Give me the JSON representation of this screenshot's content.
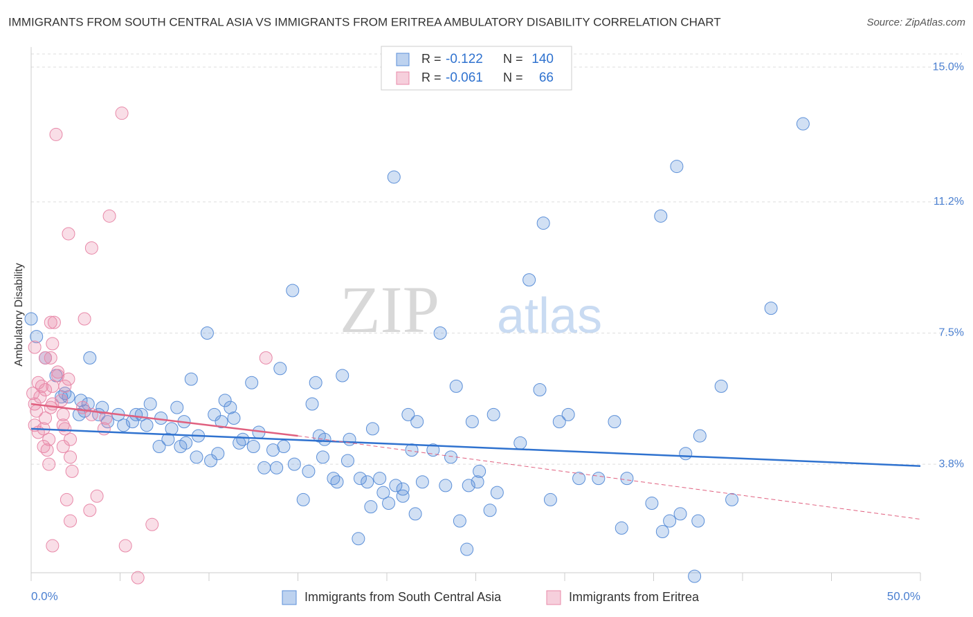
{
  "chart_data": {
    "type": "scatter",
    "title": "IMMIGRANTS FROM SOUTH CENTRAL ASIA VS IMMIGRANTS FROM ERITREA AMBULATORY DISABILITY CORRELATION CHART",
    "source": "Source: ZipAtlas.com",
    "y_label": "Ambulatory Disability",
    "watermark": [
      "ZIP",
      "atlas"
    ],
    "legend_stat_labels": {
      "r": "R =",
      "n": "N ="
    },
    "xlim": [
      0,
      50
    ],
    "ylim": [
      0.74,
      15.43
    ],
    "xticks": [
      {
        "value": 0,
        "label": "0.0%"
      },
      {
        "value": 50,
        "label": "50.0%"
      }
    ],
    "xminor_ticks": [
      5,
      10,
      15,
      20,
      25,
      30,
      35,
      40,
      45
    ],
    "yticks": [
      {
        "value": 3.8,
        "label": "3.8%"
      },
      {
        "value": 7.5,
        "label": "7.5%"
      },
      {
        "value": 11.2,
        "label": "11.2%"
      },
      {
        "value": 15.0,
        "label": "15.0%"
      }
    ],
    "grid": true,
    "series": [
      {
        "name": "Immigrants from South Central Asia",
        "color": "#5b8fd8",
        "line_color": "#2f72cf",
        "r": -0.122,
        "n": 140,
        "x": [
          43.4,
          36.3,
          20.4,
          35.4,
          28.8,
          28.0,
          14.7,
          41.6,
          9.9,
          23.0,
          3.3,
          14.0,
          17.5,
          9.0,
          16.0,
          12.4,
          23.9,
          38.8,
          28.6,
          10.9,
          15.8,
          6.7,
          11.2,
          8.2,
          3.2,
          4.0,
          30.2,
          26.0,
          21.2,
          10.3,
          2.7,
          4.9,
          5.9,
          6.2,
          21.7,
          24.8,
          29.7,
          32.8,
          7.3,
          8.6,
          11.4,
          4.3,
          5.2,
          5.7,
          6.5,
          7.9,
          10.7,
          19.2,
          37.6,
          16.2,
          16.5,
          17.9,
          12.8,
          11.9,
          9.4,
          7.7,
          8.7,
          7.2,
          8.4,
          11.7,
          12.5,
          13.6,
          14.2,
          21.4,
          22.6,
          23.6,
          27.5,
          36.8,
          9.3,
          10.5,
          10.1,
          14.8,
          16.4,
          17.8,
          13.1,
          13.8,
          15.6,
          17.0,
          17.2,
          18.5,
          18.9,
          19.6,
          20.5,
          20.9,
          22.0,
          23.3,
          24.6,
          25.1,
          25.2,
          30.8,
          31.9,
          33.5,
          19.8,
          20.9,
          26.2,
          29.2,
          39.4,
          15.3,
          34.9,
          19.1,
          20.1,
          21.6,
          25.8,
          24.1,
          36.5,
          35.9,
          37.5,
          33.2,
          35.5,
          18.4,
          24.5,
          37.3,
          0,
          0.3,
          0.8,
          1.4,
          1.7,
          2.1,
          2.8,
          1.9,
          3.0,
          3.8
        ],
        "y": [
          13.4,
          12.2,
          11.9,
          10.8,
          10.6,
          9.0,
          8.7,
          8.2,
          7.5,
          7.5,
          6.8,
          6.5,
          6.3,
          6.2,
          6.1,
          6.1,
          6.0,
          6.0,
          5.9,
          5.6,
          5.5,
          5.5,
          5.4,
          5.4,
          5.5,
          5.4,
          5.2,
          5.2,
          5.2,
          5.2,
          5.2,
          5.2,
          5.2,
          5.2,
          5.0,
          5.0,
          5.0,
          5.0,
          5.1,
          5.0,
          5.1,
          5.0,
          4.9,
          5.0,
          4.9,
          4.8,
          5.0,
          4.8,
          4.6,
          4.6,
          4.5,
          4.5,
          4.7,
          4.5,
          4.6,
          4.5,
          4.4,
          4.3,
          4.3,
          4.4,
          4.3,
          4.2,
          4.3,
          4.2,
          4.2,
          4.0,
          4.4,
          4.1,
          4.0,
          4.1,
          3.9,
          3.8,
          4.0,
          3.9,
          3.7,
          3.7,
          3.6,
          3.4,
          3.3,
          3.4,
          3.3,
          3.4,
          3.2,
          3.1,
          3.3,
          3.2,
          3.2,
          3.3,
          3.6,
          3.4,
          3.4,
          3.4,
          3.0,
          2.9,
          3.0,
          2.8,
          2.8,
          2.8,
          2.7,
          2.6,
          2.7,
          2.4,
          2.5,
          2.2,
          2.4,
          2.2,
          2.2,
          2.0,
          1.9,
          1.7,
          1.4,
          0.64,
          7.9,
          7.4,
          6.8,
          6.3,
          5.7,
          5.7,
          5.6,
          5.8,
          5.3,
          5.2
        ],
        "trend": {
          "x": [
            0,
            50
          ],
          "y": [
            4.8,
            3.75
          ]
        }
      },
      {
        "name": "Immigrants from Eritrea",
        "color": "#e888a8",
        "line_color": "#e0607f",
        "r": -0.061,
        "n": 66,
        "x": [
          5.1,
          1.4,
          4.4,
          2.1,
          3.4,
          3.0,
          1.1,
          1.3,
          1.2,
          13.2,
          0.8,
          1.1,
          1.5,
          1.5,
          0.2,
          0.4,
          0.6,
          0.1,
          0.8,
          1.2,
          2.1,
          1.9,
          0.2,
          0.5,
          1.2,
          0.3,
          0.8,
          2.9,
          1.8,
          1.1,
          1.7,
          0.2,
          0.7,
          1.9,
          3.4,
          4.2,
          0.4,
          1.0,
          1.8,
          0.7,
          2.2,
          1.8,
          0.9,
          2.2,
          1.0,
          2.3,
          2.0,
          3.7,
          3.3,
          2.2,
          6.8,
          1.2,
          5.3,
          6.0,
          4.1
        ],
        "y": [
          13.7,
          13.1,
          10.8,
          10.3,
          9.9,
          7.9,
          7.8,
          7.8,
          7.2,
          6.8,
          6.8,
          6.8,
          6.4,
          6.3,
          7.1,
          6.1,
          6.0,
          5.8,
          5.9,
          6.0,
          6.2,
          6.0,
          5.5,
          5.7,
          5.5,
          5.3,
          5.1,
          5.4,
          5.2,
          5.4,
          5.6,
          4.9,
          4.8,
          4.8,
          5.2,
          5.1,
          4.7,
          4.5,
          4.9,
          4.3,
          4.5,
          4.3,
          4.2,
          4.0,
          3.8,
          3.6,
          2.8,
          2.9,
          2.5,
          2.2,
          2.1,
          1.5,
          1.5,
          0.6,
          4.8
        ],
        "trend": {
          "x": [
            0,
            15
          ],
          "y": [
            5.5,
            4.6
          ]
        },
        "trend_extension": {
          "x": [
            15,
            50
          ],
          "y": [
            4.6,
            2.25
          ]
        }
      }
    ]
  }
}
